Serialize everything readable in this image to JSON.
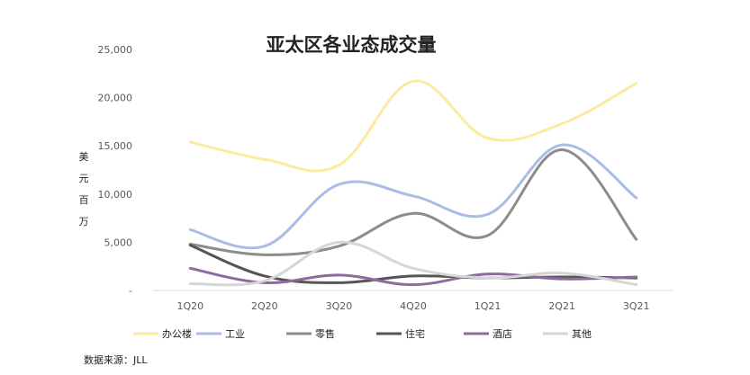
{
  "chart_data": {
    "type": "line",
    "title": "亚太区各业态成交量",
    "xlabel": "",
    "ylabel": "美元百万",
    "ylabel_chars": [
      "美",
      "元",
      "百",
      "万"
    ],
    "categories": [
      "1Q20",
      "2Q20",
      "3Q20",
      "4Q20",
      "1Q21",
      "2Q21",
      "3Q21"
    ],
    "ylim": [
      0,
      25000
    ],
    "yticks": [
      0,
      5000,
      10000,
      15000,
      20000,
      25000
    ],
    "ytick_labels": [
      "-",
      "5,000",
      "10,000",
      "15,000",
      "20,000",
      "25,000"
    ],
    "grid": false,
    "smooth": true,
    "legend_position": "bottom",
    "series": [
      {
        "name": "办公楼",
        "color": "#FCEB9E",
        "values": [
          15400,
          13600,
          13000,
          21700,
          15800,
          17300,
          21500
        ]
      },
      {
        "name": "工业",
        "color": "#A9BDE4",
        "values": [
          6300,
          4600,
          11000,
          9800,
          7900,
          15100,
          9600
        ]
      },
      {
        "name": "零售",
        "color": "#8C8C8C",
        "values": [
          4800,
          3700,
          4600,
          8000,
          5700,
          14600,
          5300
        ]
      },
      {
        "name": "住宅",
        "color": "#555555",
        "values": [
          4700,
          1500,
          800,
          1500,
          1300,
          1400,
          1300
        ]
      },
      {
        "name": "酒店",
        "color": "#8E6A9E",
        "values": [
          2300,
          800,
          1600,
          600,
          1700,
          1200,
          1400
        ]
      },
      {
        "name": "其他",
        "color": "#D6D6D6",
        "values": [
          700,
          1000,
          5000,
          2300,
          1300,
          1800,
          600
        ]
      }
    ]
  },
  "source": "数据来源：JLL"
}
